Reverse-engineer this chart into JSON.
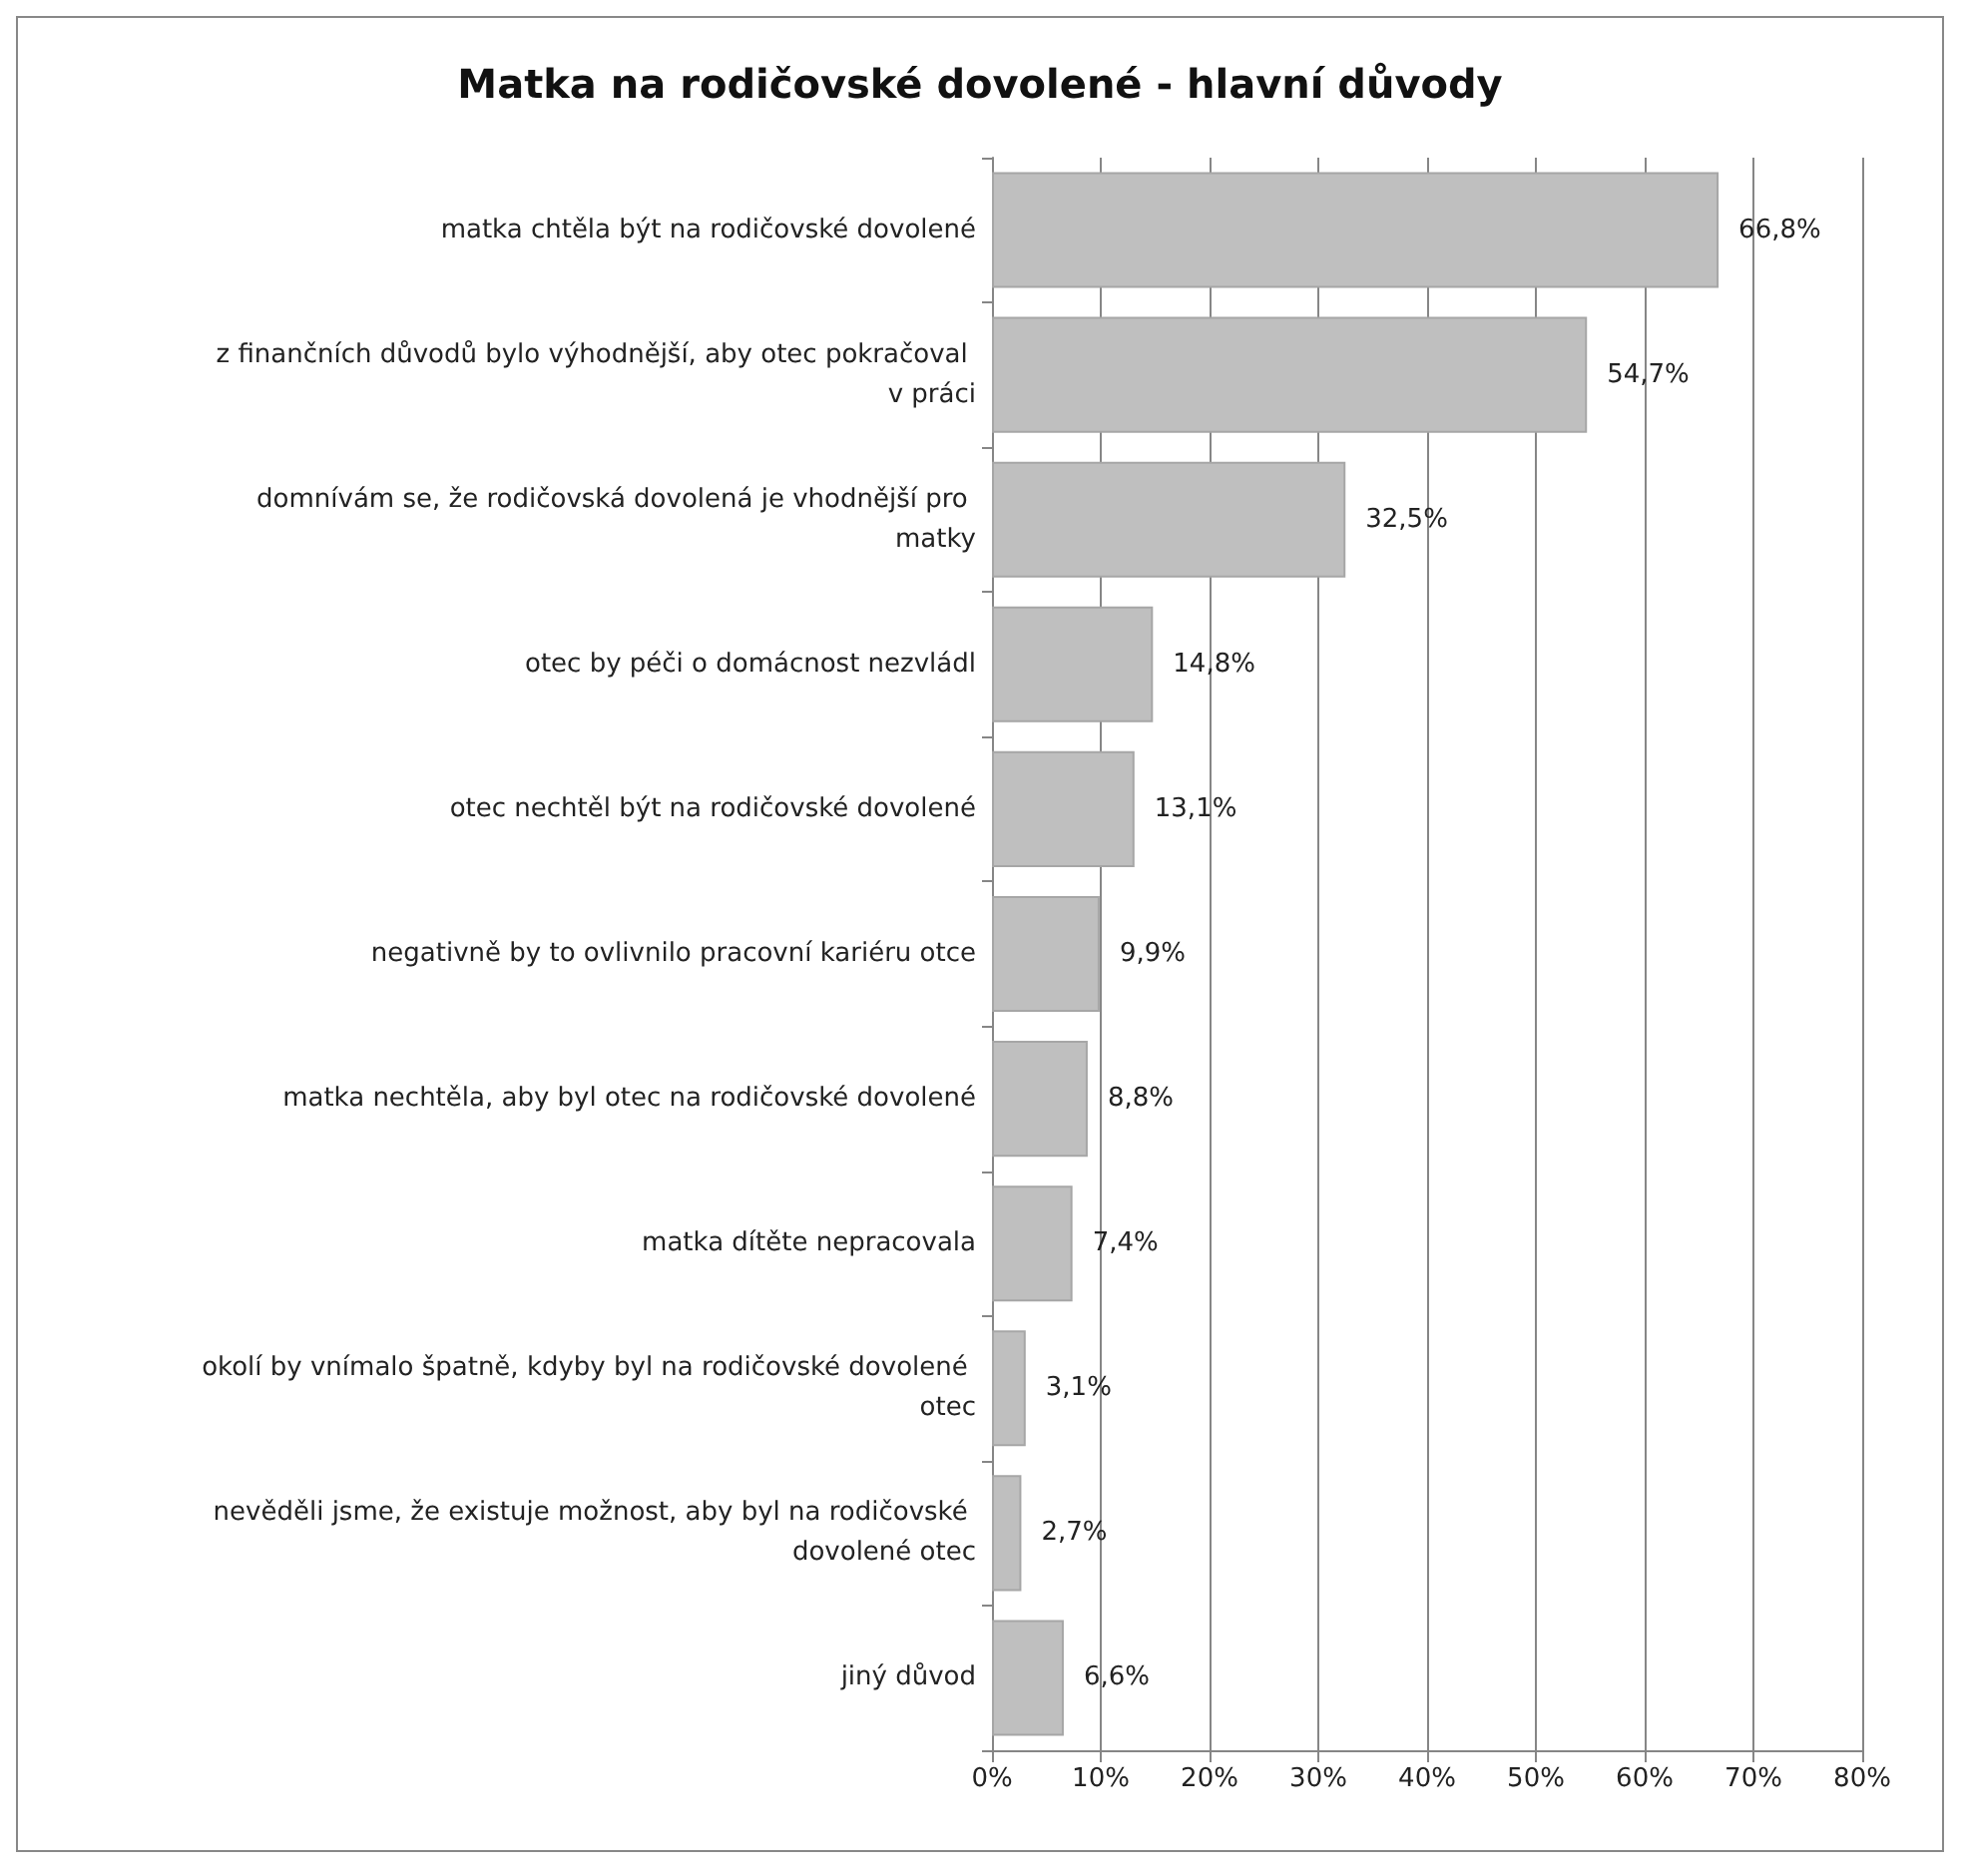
{
  "chart_data": {
    "type": "bar",
    "orientation": "horizontal",
    "title": "Matka na rodičovské dovolené - hlavní důvody",
    "categories": [
      "matka chtěla být na rodičovské dovolené",
      "z finančních důvodů bylo výhodnější, aby otec pokračoval v práci",
      "domnívám se, že rodičovská dovolená je vhodnější pro matky",
      "otec by péči o domácnost nezvládl",
      "otec nechtěl být na rodičovské dovolené",
      "negativně by to ovlivnilo pracovní kariéru otce",
      "matka nechtěla, aby byl otec na rodičovské dovolené",
      "matka dítěte nepracovala",
      "okolí by vnímalo špatně, kdyby byl na rodičovské dovolené otec",
      "nevěděli jsme, že existuje možnost, aby byl na rodičovské dovolené otec",
      "jiný důvod"
    ],
    "values": [
      66.8,
      54.7,
      32.5,
      14.8,
      13.1,
      9.9,
      8.8,
      7.4,
      3.1,
      2.7,
      6.6
    ],
    "value_labels": [
      "66,8%",
      "54,7%",
      "32,5%",
      "14,8%",
      "13,1%",
      "9,9%",
      "8,8%",
      "7,4%",
      "3,1%",
      "2,7%",
      "6,6%"
    ],
    "color": "#bfbfbf",
    "xlim": [
      0,
      80
    ],
    "xticks": [
      {
        "value": 0,
        "label": "0%"
      },
      {
        "value": 10,
        "label": "10%"
      },
      {
        "value": 20,
        "label": "20%"
      },
      {
        "value": 30,
        "label": "30%"
      },
      {
        "value": 40,
        "label": "40%"
      },
      {
        "value": 50,
        "label": "50%"
      },
      {
        "value": 60,
        "label": "60%"
      },
      {
        "value": 70,
        "label": "70%"
      },
      {
        "value": 80,
        "label": "80%"
      }
    ],
    "grid": "x"
  }
}
